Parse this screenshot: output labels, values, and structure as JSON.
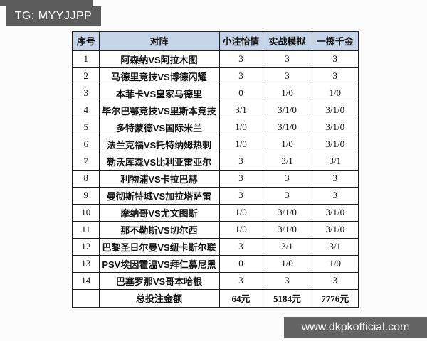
{
  "badge": {
    "text": "TG: MYYJJPP"
  },
  "footer": {
    "url": "www.dkpkofficial.com"
  },
  "colors": {
    "header_bg": "#c5d4e7",
    "bar_bg": "#5c5c5c",
    "border": "#1f1f1f"
  },
  "table": {
    "headers": [
      "序号",
      "对阵",
      "小注怡情",
      "实战模拟",
      "一掷千金"
    ],
    "rows": [
      {
        "no": "1",
        "match": "阿森纳VS阿拉木图",
        "c1": "3",
        "c2": "3",
        "c3": "3"
      },
      {
        "no": "2",
        "match": "马德里竞技VS博德闪耀",
        "c1": "3",
        "c2": "3",
        "c3": "3"
      },
      {
        "no": "3",
        "match": "本菲卡VS皇家马德里",
        "c1": "0",
        "c2": "1/0",
        "c3": "1/0"
      },
      {
        "no": "4",
        "match": "毕尔巴鄂竞技VS里斯本竞技",
        "c1": "3/1",
        "c2": "3/1/0",
        "c3": "3/1/0"
      },
      {
        "no": "5",
        "match": "多特蒙德VS国际米兰",
        "c1": "1/0",
        "c2": "3/1/0",
        "c3": "3/1/0"
      },
      {
        "no": "6",
        "match": "法兰克福VS托特纳姆热刺",
        "c1": "1/0",
        "c2": "1/0",
        "c3": "3/1/0"
      },
      {
        "no": "7",
        "match": "勒沃库森VS比利亚雷亚尔",
        "c1": "3",
        "c2": "3/1",
        "c3": "3/1"
      },
      {
        "no": "8",
        "match": "利物浦VS卡拉巴赫",
        "c1": "3",
        "c2": "3",
        "c3": "3"
      },
      {
        "no": "9",
        "match": "曼彻斯特城VS加拉塔萨雷",
        "c1": "3",
        "c2": "3",
        "c3": "3"
      },
      {
        "no": "10",
        "match": "摩纳哥VS尤文图斯",
        "c1": "1/0",
        "c2": "3/1/0",
        "c3": "3/1/0"
      },
      {
        "no": "11",
        "match": "那不勒斯VS切尔西",
        "c1": "1/0",
        "c2": "3/1/0",
        "c3": "3/1/0"
      },
      {
        "no": "12",
        "match": "巴黎圣日尔曼VS纽卡斯尔联",
        "c1": "3",
        "c2": "3/1",
        "c3": "3/1"
      },
      {
        "no": "13",
        "match": "PSV埃因霍温VS拜仁慕尼黑",
        "c1": "0",
        "c2": "1/0",
        "c3": "1/0"
      },
      {
        "no": "14",
        "match": "巴塞罗那VS哥本哈根",
        "c1": "3",
        "c2": "3",
        "c3": "3"
      }
    ],
    "total": {
      "label": "总投注金额",
      "c1": "64元",
      "c2": "5184元",
      "c3": "7776元"
    }
  }
}
